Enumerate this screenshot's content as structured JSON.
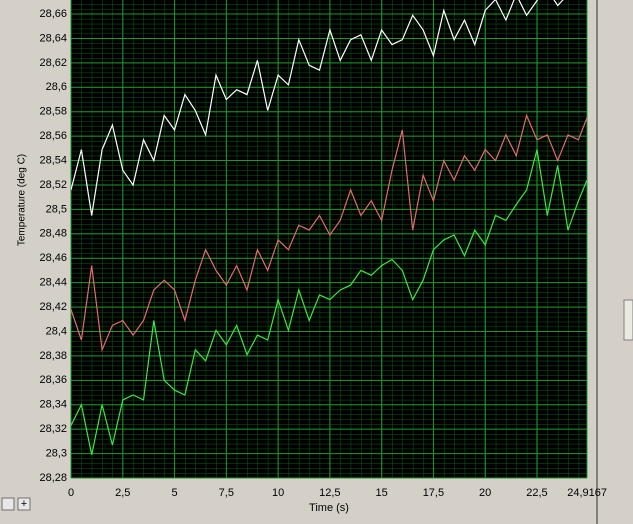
{
  "chart_data": {
    "type": "line",
    "ylabel": "Temperature (deg C)",
    "xlabel": "Time (s)",
    "x": [
      0,
      0.5,
      1,
      1.5,
      2,
      2.5,
      3,
      3.5,
      4,
      4.5,
      5,
      5.5,
      6,
      6.5,
      7,
      7.5,
      8,
      8.5,
      9,
      9.5,
      10,
      10.5,
      11,
      11.5,
      12,
      12.5,
      13,
      13.5,
      14,
      14.5,
      15,
      15.5,
      16,
      16.5,
      17,
      17.5,
      18,
      18.5,
      19,
      19.5,
      20,
      20.5,
      21,
      21.5,
      22,
      22.5,
      23,
      23.5,
      24,
      24.5,
      24.9167
    ],
    "series": [
      {
        "color": "#ffffff",
        "values": [
          28.516,
          28.549,
          28.495,
          28.549,
          28.569,
          28.532,
          28.52,
          28.557,
          28.54,
          28.577,
          28.565,
          28.594,
          28.581,
          28.561,
          28.61,
          28.59,
          28.598,
          28.594,
          28.622,
          28.581,
          28.61,
          28.602,
          28.639,
          28.618,
          28.614,
          28.647,
          28.622,
          28.639,
          28.643,
          28.622,
          28.647,
          28.635,
          28.639,
          28.659,
          28.647,
          28.626,
          28.663,
          28.639,
          28.655,
          28.635,
          28.663,
          28.672,
          28.655,
          28.676,
          28.659,
          28.671,
          28.68,
          28.667,
          28.676,
          28.68,
          28.684
        ]
      },
      {
        "color": "#e86a6a",
        "values": [
          28.418,
          28.393,
          28.454,
          28.385,
          28.405,
          28.409,
          28.397,
          28.409,
          28.434,
          28.442,
          28.434,
          28.409,
          28.442,
          28.467,
          28.45,
          28.438,
          28.454,
          28.434,
          28.467,
          28.45,
          28.475,
          28.467,
          28.487,
          28.483,
          28.495,
          28.479,
          28.491,
          28.516,
          28.495,
          28.507,
          28.491,
          28.532,
          28.565,
          28.483,
          28.528,
          28.507,
          28.54,
          28.524,
          28.544,
          28.532,
          28.549,
          28.54,
          28.561,
          28.544,
          28.577,
          28.557,
          28.561,
          28.54,
          28.561,
          28.557,
          28.575
        ]
      },
      {
        "color": "#3ee83e",
        "values": [
          28.323,
          28.34,
          28.299,
          28.34,
          28.307,
          28.344,
          28.348,
          28.344,
          28.409,
          28.36,
          28.352,
          28.348,
          28.385,
          28.376,
          28.401,
          28.389,
          28.405,
          28.381,
          28.397,
          28.393,
          28.426,
          28.401,
          28.434,
          28.409,
          28.43,
          28.426,
          28.434,
          28.438,
          28.45,
          28.446,
          28.454,
          28.459,
          28.45,
          28.426,
          28.442,
          28.467,
          28.475,
          28.479,
          28.462,
          28.483,
          28.471,
          28.495,
          28.491,
          28.504,
          28.516,
          28.549,
          28.495,
          28.536,
          28.483,
          28.507,
          28.524
        ]
      }
    ],
    "xlim": [
      0,
      24.9167
    ],
    "ylim": [
      28.28,
      28.6715
    ],
    "xticks": [
      0,
      {
        "value": 2.5,
        "label": "2,5"
      },
      5,
      {
        "value": 7.5,
        "label": "7,5"
      },
      10,
      {
        "value": 12.5,
        "label": "12,5"
      },
      15,
      {
        "value": 17.5,
        "label": "17,5"
      },
      20,
      {
        "value": 22.5,
        "label": "22,5"
      },
      {
        "value": 24.9167,
        "label": "24,9167"
      }
    ],
    "yticks": [
      {
        "value": 28.28,
        "label": "28,28"
      },
      {
        "value": 28.3,
        "label": "28,3"
      },
      {
        "value": 28.32,
        "label": "28,32"
      },
      {
        "value": 28.34,
        "label": "28,34"
      },
      {
        "value": 28.36,
        "label": "28,36"
      },
      {
        "value": 28.38,
        "label": "28,38"
      },
      {
        "value": 28.4,
        "label": "28,4"
      },
      {
        "value": 28.42,
        "label": "28,42"
      },
      {
        "value": 28.44,
        "label": "28,44"
      },
      {
        "value": 28.46,
        "label": "28,46"
      },
      {
        "value": 28.48,
        "label": "28,48"
      },
      {
        "value": 28.5,
        "label": "28,5"
      },
      {
        "value": 28.52,
        "label": "28,52"
      },
      {
        "value": 28.54,
        "label": "28,54"
      },
      {
        "value": 28.56,
        "label": "28,56"
      },
      {
        "value": 28.58,
        "label": "28,58"
      },
      {
        "value": 28.6,
        "label": "28,6"
      },
      {
        "value": 28.62,
        "label": "28,62"
      },
      {
        "value": 28.64,
        "label": "28,64"
      },
      {
        "value": 28.66,
        "label": "28,66"
      }
    ],
    "grid": true
  }
}
